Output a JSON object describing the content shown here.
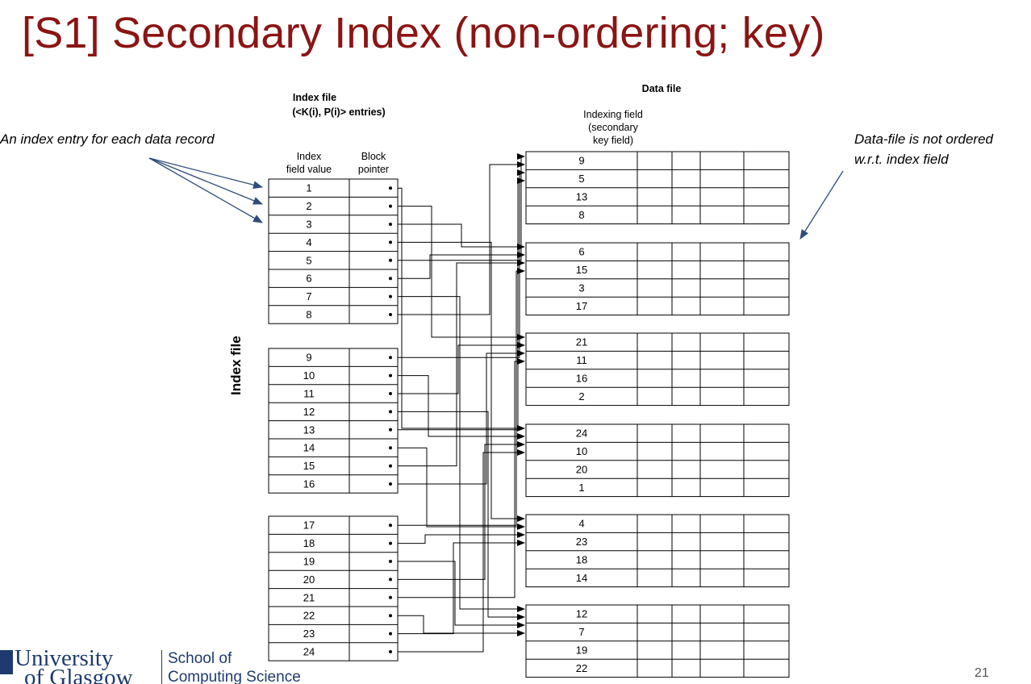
{
  "title": "[S1] Secondary Index (non-ordering; key)",
  "annotation_left": "An index entry for each data record",
  "annotation_right_line1": "Data-file is not ordered",
  "annotation_right_line2": "w.r.t. index field",
  "index_header_title": "Index file",
  "index_header_sub": "(<K(i), P(i)> entries)",
  "data_header_title": "Data file",
  "indexing_field_l1": "Indexing field",
  "indexing_field_l2": "(secondary",
  "indexing_field_l3": "key field)",
  "col_index_l1": "Index",
  "col_index_l2": "field value",
  "col_block_l1": "Block",
  "col_block_l2": "pointer",
  "vertical_label": "Index file",
  "index_blocks": [
    [
      "1",
      "2",
      "3",
      "4",
      "5",
      "6",
      "7",
      "8"
    ],
    [
      "9",
      "10",
      "11",
      "12",
      "13",
      "14",
      "15",
      "16"
    ],
    [
      "17",
      "18",
      "19",
      "20",
      "21",
      "22",
      "23",
      "24"
    ]
  ],
  "data_blocks": [
    [
      "9",
      "5",
      "13",
      "8"
    ],
    [
      "6",
      "15",
      "3",
      "17"
    ],
    [
      "21",
      "11",
      "16",
      "2"
    ],
    [
      "24",
      "10",
      "20",
      "1"
    ],
    [
      "4",
      "23",
      "18",
      "14"
    ],
    [
      "12",
      "7",
      "19",
      "22"
    ]
  ],
  "logo_line1": "University",
  "logo_line2": "of Glasgow",
  "school_line1": "School of",
  "school_line2": "Computing Science",
  "page_number": "21"
}
